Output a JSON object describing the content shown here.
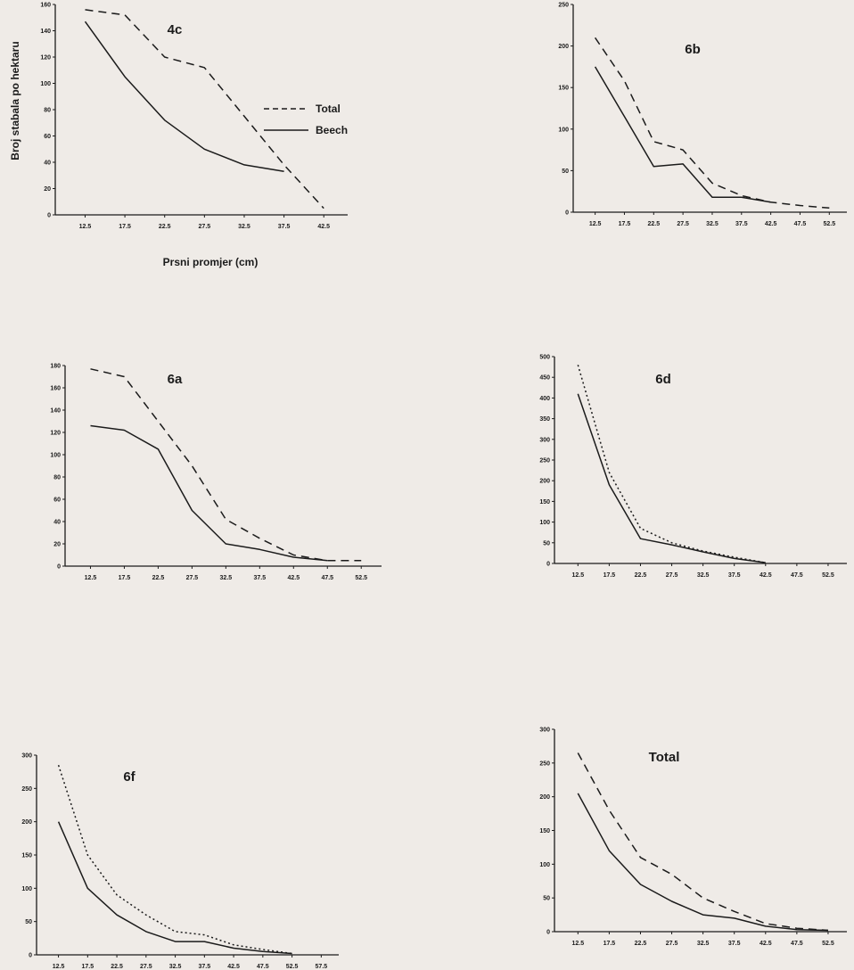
{
  "colors": {
    "background": "#efebe7",
    "ink": "#1b1b1b"
  },
  "chart_data": [
    {
      "id": "4c",
      "type": "line",
      "title": "4c",
      "xlabel": "Prsni promjer (cm)",
      "ylabel": "Broj stabala po hektaru",
      "ylim": [
        0,
        160
      ],
      "yticks": [
        0,
        20,
        40,
        60,
        80,
        100,
        120,
        140,
        160
      ],
      "categories": [
        "12.5",
        "17.5",
        "22.5",
        "27.5",
        "32.5",
        "37.5",
        "42.5"
      ],
      "legend": {
        "position": "right",
        "entries": [
          {
            "name": "Total",
            "style": "dashed"
          },
          {
            "name": "Beech",
            "style": "solid"
          }
        ]
      },
      "series": [
        {
          "name": "Total",
          "style": "dashed",
          "values": [
            156,
            152,
            120,
            112,
            75,
            38,
            5
          ]
        },
        {
          "name": "Beech",
          "style": "solid",
          "values": [
            147,
            105,
            72,
            50,
            38,
            33,
            null
          ]
        }
      ]
    },
    {
      "id": "6b",
      "type": "line",
      "title": "6b",
      "ylim": [
        0,
        250
      ],
      "yticks": [
        0,
        50,
        100,
        150,
        200,
        250
      ],
      "categories": [
        "12.5",
        "17.5",
        "22.5",
        "27.5",
        "32.5",
        "37.5",
        "42.5",
        "47.5",
        "52.5"
      ],
      "series": [
        {
          "name": "Total",
          "style": "dashed",
          "values": [
            210,
            158,
            85,
            75,
            35,
            20,
            12,
            8,
            5
          ]
        },
        {
          "name": "Beech",
          "style": "solid",
          "values": [
            175,
            115,
            55,
            58,
            18,
            18,
            12,
            null,
            null
          ]
        }
      ]
    },
    {
      "id": "6a",
      "type": "line",
      "title": "6a",
      "ylim": [
        0,
        180
      ],
      "yticks": [
        0,
        20,
        40,
        60,
        80,
        100,
        120,
        140,
        160,
        180
      ],
      "categories": [
        "12.5",
        "17.5",
        "22.5",
        "27.5",
        "32.5",
        "37.5",
        "42.5",
        "47.5",
        "52.5"
      ],
      "series": [
        {
          "name": "Total",
          "style": "dashed",
          "values": [
            177,
            170,
            130,
            90,
            42,
            25,
            10,
            5,
            5
          ]
        },
        {
          "name": "Beech",
          "style": "solid",
          "values": [
            126,
            122,
            105,
            50,
            20,
            15,
            8,
            5,
            null
          ]
        }
      ]
    },
    {
      "id": "6d",
      "type": "line",
      "title": "6d",
      "ylim": [
        0,
        500
      ],
      "yticks": [
        0,
        50,
        100,
        150,
        200,
        250,
        300,
        350,
        400,
        450,
        500
      ],
      "categories": [
        "12.5",
        "17.5",
        "22.5",
        "27.5",
        "32.5",
        "37.5",
        "42.5",
        "47.5",
        "52.5"
      ],
      "series": [
        {
          "name": "Total",
          "style": "dotted",
          "values": [
            480,
            220,
            85,
            50,
            30,
            15,
            2,
            null,
            null
          ]
        },
        {
          "name": "Beech",
          "style": "solid",
          "values": [
            410,
            190,
            60,
            45,
            28,
            12,
            2,
            null,
            null
          ]
        }
      ]
    },
    {
      "id": "6f",
      "type": "line",
      "title": "6f",
      "ylim": [
        0,
        300
      ],
      "yticks": [
        0,
        50,
        100,
        150,
        200,
        250,
        300
      ],
      "categories": [
        "12.5",
        "17.5",
        "22.5",
        "27.5",
        "32.5",
        "37.5",
        "42.5",
        "47.5",
        "52.5",
        "57.5"
      ],
      "series": [
        {
          "name": "Total",
          "style": "dotted",
          "values": [
            285,
            150,
            90,
            60,
            35,
            30,
            15,
            8,
            2,
            null
          ]
        },
        {
          "name": "Beech",
          "style": "solid",
          "values": [
            200,
            100,
            60,
            35,
            20,
            20,
            10,
            5,
            2,
            null
          ]
        }
      ]
    },
    {
      "id": "Total",
      "type": "line",
      "title": "Total",
      "ylim": [
        0,
        300
      ],
      "yticks": [
        0,
        50,
        100,
        150,
        200,
        250,
        300
      ],
      "categories": [
        "12.5",
        "17.5",
        "22.5",
        "27.5",
        "32.5",
        "37.5",
        "42.5",
        "47.5",
        "52.5"
      ],
      "series": [
        {
          "name": "Total",
          "style": "dashed",
          "values": [
            265,
            180,
            110,
            85,
            50,
            30,
            12,
            5,
            2
          ]
        },
        {
          "name": "Beech",
          "style": "solid",
          "values": [
            205,
            120,
            70,
            45,
            25,
            20,
            8,
            3,
            2
          ]
        }
      ]
    }
  ]
}
